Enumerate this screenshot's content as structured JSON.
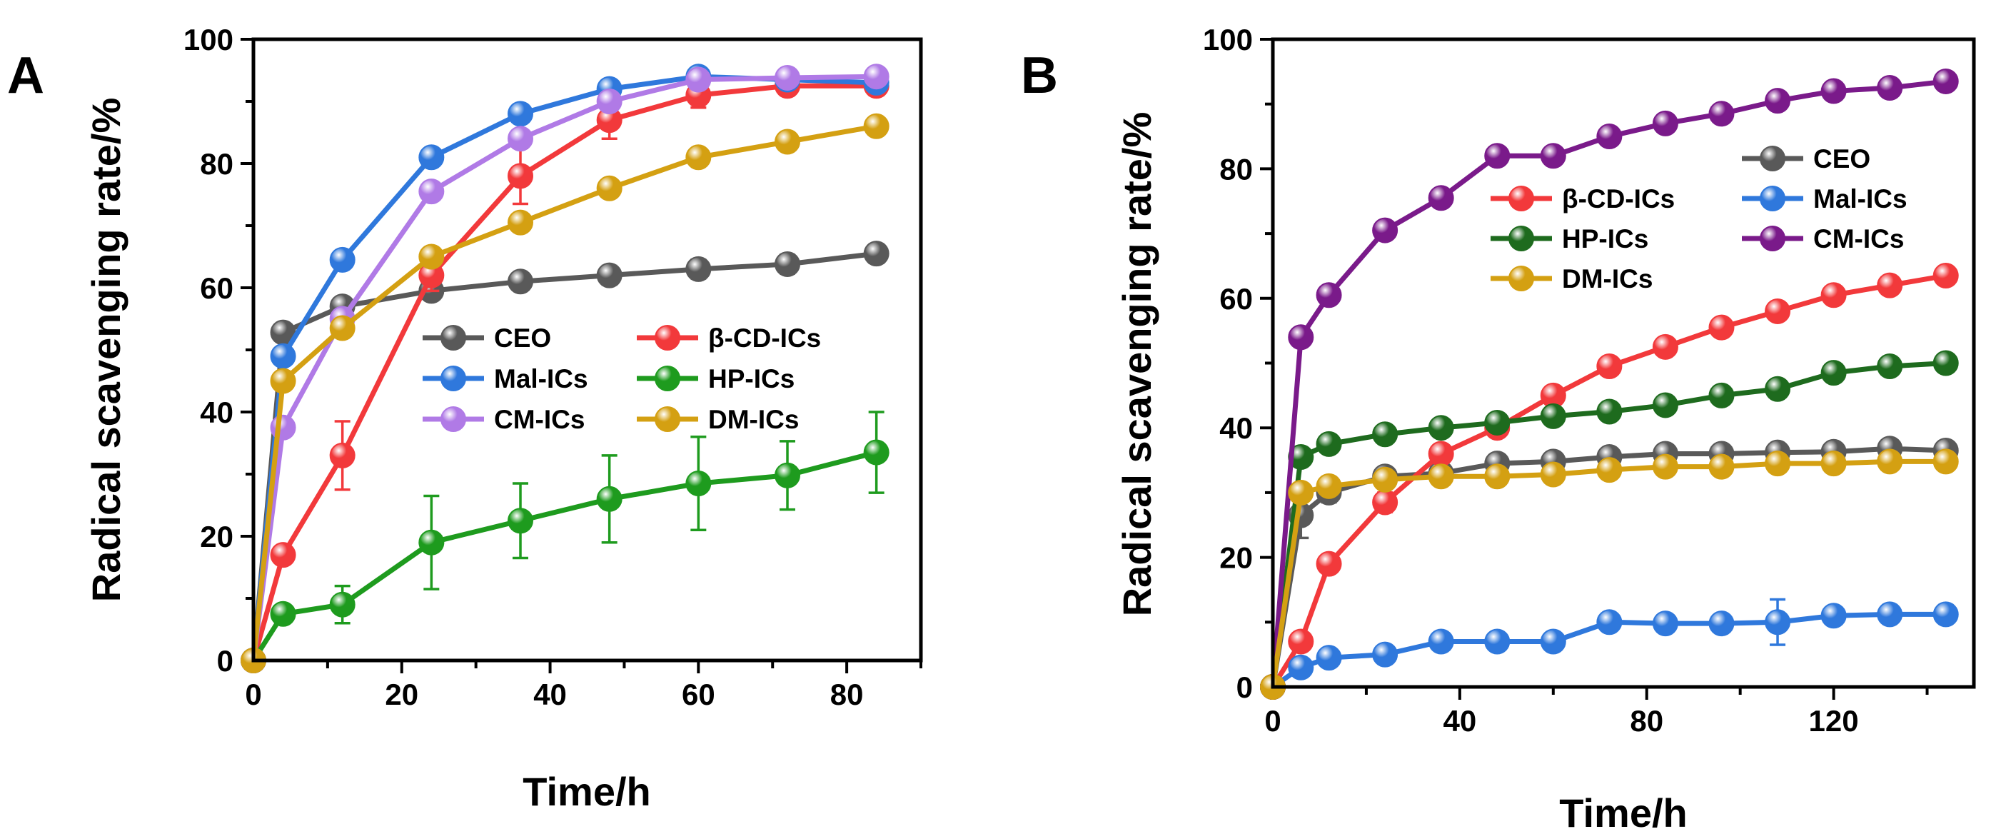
{
  "chart_data": [
    {
      "panel": "A",
      "type": "line",
      "xlabel": "Time/h",
      "ylabel": "Radical scavenging rate/%",
      "xlim": [
        0,
        90
      ],
      "ylim": [
        0,
        100
      ],
      "xticks": [
        0,
        20,
        40,
        60,
        80
      ],
      "yticks": [
        0,
        20,
        40,
        60,
        80,
        100
      ],
      "legend_columns": 2,
      "legend_position": "middle-right",
      "series": [
        {
          "name": "CEO",
          "color": "#595959",
          "x": [
            0,
            4,
            12,
            24,
            36,
            48,
            60,
            72,
            84
          ],
          "y": [
            0,
            52.8,
            57,
            59.5,
            61,
            62,
            63,
            63.8,
            65.5
          ],
          "err": [
            0,
            1,
            1,
            1,
            1,
            1.5,
            1.5,
            1.5,
            1.5
          ]
        },
        {
          "name": "β-CD-ICs",
          "color": "#f2393b",
          "x": [
            0,
            4,
            12,
            24,
            36,
            48,
            60,
            72,
            84
          ],
          "y": [
            0,
            17,
            33,
            62,
            78,
            87,
            91,
            92.5,
            92.5
          ],
          "err": [
            0,
            1,
            5.5,
            2.5,
            4.5,
            3,
            2,
            1.5,
            1.5
          ]
        },
        {
          "name": "Mal-ICs",
          "color": "#2f78dc",
          "x": [
            0,
            4,
            12,
            24,
            36,
            48,
            60,
            72,
            84
          ],
          "y": [
            0,
            49,
            64.5,
            81,
            88,
            92,
            94,
            93.5,
            93
          ],
          "err": [
            0,
            1,
            1,
            1,
            1,
            1,
            1,
            1,
            1
          ]
        },
        {
          "name": "HP-ICs",
          "color": "#1e9b1e",
          "x": [
            0,
            4,
            12,
            24,
            36,
            48,
            60,
            72,
            84
          ],
          "y": [
            0,
            7.5,
            9,
            19,
            22.5,
            26,
            28.5,
            29.8,
            33.5
          ],
          "err": [
            0,
            1,
            3,
            7.5,
            6,
            7,
            7.5,
            5.5,
            6.5
          ]
        },
        {
          "name": "CM-ICs",
          "color": "#b07ae6",
          "x": [
            0,
            4,
            12,
            24,
            36,
            48,
            60,
            72,
            84
          ],
          "y": [
            0,
            37.5,
            55,
            75.5,
            84,
            90,
            93.5,
            93.8,
            94
          ],
          "err": [
            0,
            1,
            1,
            1,
            1,
            1,
            1,
            1,
            1
          ]
        },
        {
          "name": "DM-ICs",
          "color": "#d4a012",
          "x": [
            0,
            4,
            12,
            24,
            36,
            48,
            60,
            72,
            84
          ],
          "y": [
            0,
            45,
            53.5,
            65,
            70.5,
            76,
            81,
            83.5,
            86
          ],
          "err": [
            0,
            1,
            1,
            1,
            1,
            1,
            1,
            1,
            1
          ]
        }
      ]
    },
    {
      "panel": "B",
      "type": "line",
      "xlabel": "Time/h",
      "ylabel": "Radical scavenging rate/%",
      "xlim": [
        0,
        150
      ],
      "ylim": [
        0,
        100
      ],
      "xticks": [
        0,
        40,
        80,
        120
      ],
      "yticks": [
        0,
        20,
        40,
        60,
        80,
        100
      ],
      "legend_columns": 2,
      "legend_position": "upper-right",
      "series": [
        {
          "name": "CEO",
          "color": "#595959",
          "x": [
            0,
            6,
            12,
            24,
            36,
            48,
            60,
            72,
            84,
            96,
            108,
            120,
            132,
            144
          ],
          "y": [
            0,
            26.5,
            30,
            32.5,
            33,
            34.5,
            34.8,
            35.5,
            36,
            36,
            36.2,
            36.3,
            36.8,
            36.5
          ],
          "err": [
            0,
            3.5,
            1.5,
            1,
            1,
            1,
            1,
            1,
            1,
            1,
            1,
            1,
            1,
            1
          ]
        },
        {
          "name": "β-CD-ICs",
          "color": "#f2393b",
          "x": [
            0,
            6,
            12,
            24,
            36,
            48,
            60,
            72,
            84,
            96,
            108,
            120,
            132,
            144
          ],
          "y": [
            0,
            7,
            19,
            28.5,
            36,
            40,
            45,
            49.5,
            52.5,
            55.5,
            58,
            60.5,
            62,
            63.5
          ],
          "err": [
            0,
            1,
            1,
            1.5,
            1,
            1,
            1,
            1,
            1,
            1,
            1,
            1,
            1,
            1
          ]
        },
        {
          "name": "Mal-ICs",
          "color": "#2f78dc",
          "x": [
            0,
            6,
            12,
            24,
            36,
            48,
            60,
            72,
            84,
            96,
            108,
            120,
            132,
            144
          ],
          "y": [
            0,
            3,
            4.5,
            5,
            7,
            7,
            7,
            10,
            9.8,
            9.8,
            10,
            11,
            11.2,
            11.2
          ],
          "err": [
            0,
            1,
            1,
            1,
            1,
            1,
            1,
            1,
            1,
            1,
            3.5,
            1,
            1,
            1
          ]
        },
        {
          "name": "HP-ICs",
          "color": "#1e6b1e",
          "x": [
            0,
            6,
            12,
            24,
            36,
            48,
            60,
            72,
            84,
            96,
            108,
            120,
            132,
            144
          ],
          "y": [
            0,
            35.5,
            37.5,
            39,
            40,
            40.8,
            41.8,
            42.5,
            43.5,
            45,
            46,
            48.5,
            49.5,
            50
          ],
          "err": [
            0,
            1,
            1,
            1,
            1,
            1,
            1,
            1,
            1,
            1,
            1,
            1,
            1,
            1
          ]
        },
        {
          "name": "CM-ICs",
          "color": "#7a1a8a",
          "x": [
            0,
            6,
            12,
            24,
            36,
            48,
            60,
            72,
            84,
            96,
            108,
            120,
            132,
            144
          ],
          "y": [
            0,
            54,
            60.5,
            70.5,
            75.5,
            82,
            82,
            85,
            87,
            88.5,
            90.5,
            92,
            92.5,
            93.5
          ],
          "err": [
            0,
            1,
            1,
            1,
            1,
            1,
            1,
            1,
            1,
            1,
            1,
            1,
            1,
            1
          ]
        },
        {
          "name": "DM-ICs",
          "color": "#d4a012",
          "x": [
            0,
            6,
            12,
            24,
            36,
            48,
            60,
            72,
            84,
            96,
            108,
            120,
            132,
            144
          ],
          "y": [
            0,
            30,
            31,
            32,
            32.5,
            32.5,
            32.8,
            33.5,
            34,
            34,
            34.5,
            34.5,
            34.8,
            34.8
          ],
          "err": [
            0,
            1,
            1,
            1,
            1,
            1,
            1,
            1,
            1,
            1,
            1,
            1,
            1,
            1
          ]
        }
      ]
    }
  ]
}
